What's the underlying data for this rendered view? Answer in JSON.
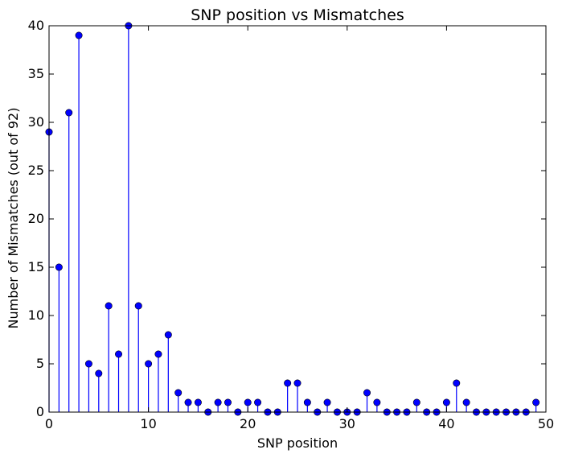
{
  "chart_data": {
    "type": "scatter",
    "style": "stem",
    "title": "SNP position vs Mismatches",
    "xlabel": "SNP position",
    "ylabel": "Number of Mismatches (out of 92)",
    "xlim": [
      0,
      50
    ],
    "ylim": [
      0,
      40
    ],
    "xticks": [
      0,
      10,
      20,
      30,
      40,
      50
    ],
    "yticks": [
      0,
      5,
      10,
      15,
      20,
      25,
      30,
      35,
      40
    ],
    "grid": false,
    "color": "#0000ff",
    "series": [
      {
        "x": [
          0,
          1,
          2,
          3,
          4,
          5,
          6,
          7,
          8,
          9,
          10,
          11,
          12,
          13,
          14,
          15,
          16,
          17,
          18,
          19,
          20,
          21,
          22,
          23,
          24,
          25,
          26,
          27,
          28,
          29,
          30,
          31,
          32,
          33,
          34,
          35,
          36,
          37,
          38,
          39,
          40,
          41,
          42,
          43,
          44,
          45,
          46,
          47,
          48,
          49
        ],
        "values": [
          29,
          15,
          31,
          39,
          5,
          4,
          11,
          6,
          40,
          11,
          5,
          6,
          8,
          2,
          1,
          1,
          0,
          1,
          1,
          0,
          1,
          1,
          0,
          0,
          3,
          3,
          1,
          0,
          1,
          0,
          0,
          0,
          2,
          1,
          0,
          0,
          0,
          1,
          0,
          0,
          1,
          3,
          1,
          0,
          0,
          0,
          0,
          0,
          0,
          1
        ]
      }
    ]
  }
}
